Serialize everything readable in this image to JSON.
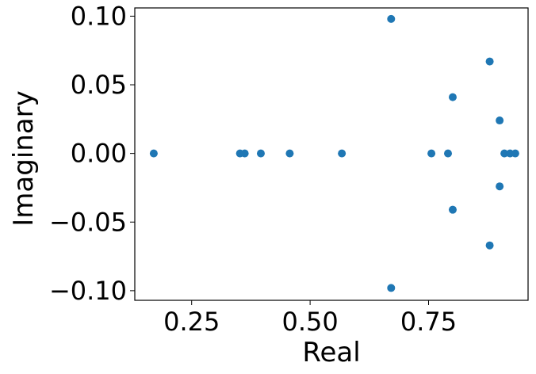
{
  "chart_data": {
    "type": "scatter",
    "xlabel": "Real",
    "ylabel": "Imaginary",
    "xlim": [
      0.13,
      0.96
    ],
    "ylim": [
      -0.107,
      0.106
    ],
    "xticks": [
      0.25,
      0.5,
      0.75
    ],
    "xtick_labels": [
      "0.25",
      "0.50",
      "0.75"
    ],
    "yticks": [
      0.1,
      0.05,
      0.0,
      -0.05,
      -0.1
    ],
    "ytick_labels": [
      "0.10",
      "0.05",
      "0.00",
      "−0.05",
      "−0.10"
    ],
    "grid": false,
    "series": [
      {
        "color": "#1f77b4",
        "x": [
          0.17,
          0.352,
          0.362,
          0.396,
          0.457,
          0.567,
          0.671,
          0.671,
          0.756,
          0.791,
          0.801,
          0.801,
          0.879,
          0.879,
          0.9,
          0.9,
          0.91,
          0.922,
          0.933
        ],
        "y": [
          0.0,
          0.0,
          0.0,
          0.0,
          0.0,
          0.0,
          0.098,
          -0.098,
          0.0,
          0.0,
          0.041,
          -0.041,
          0.067,
          -0.067,
          0.024,
          -0.024,
          0.0,
          0.0,
          0.0
        ]
      }
    ]
  }
}
